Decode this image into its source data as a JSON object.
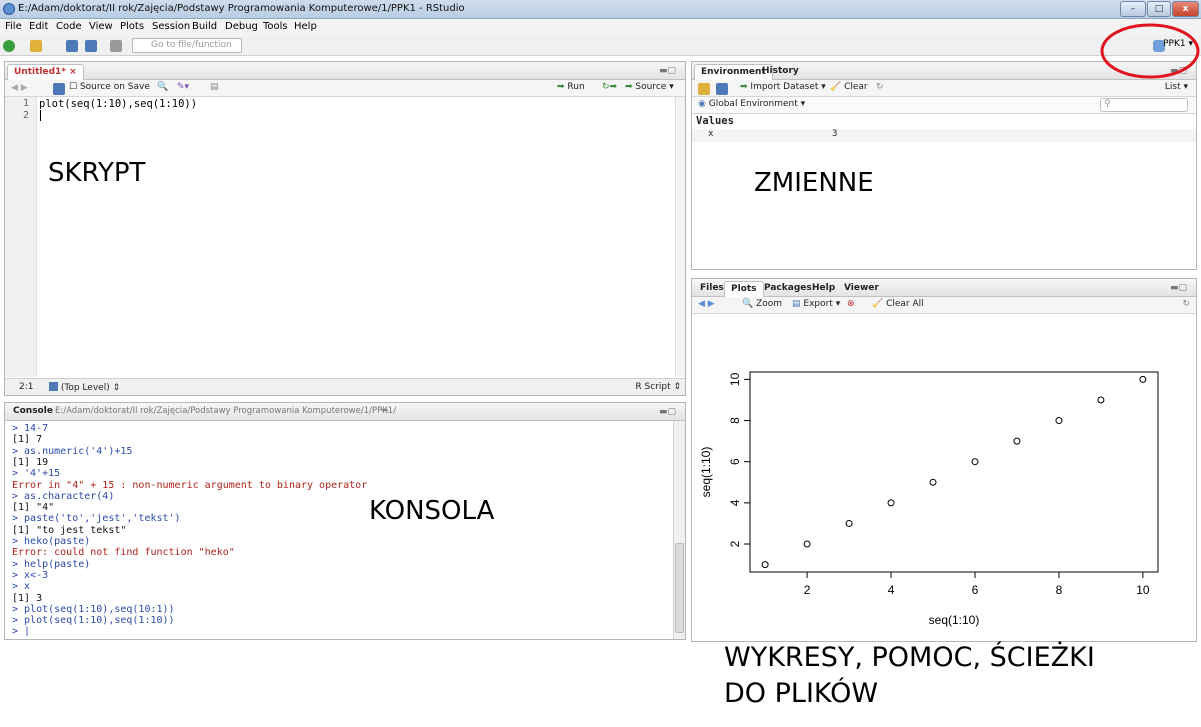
{
  "window": {
    "title": "E:/Adam/doktorat/II rok/Zajęcia/Podstawy Programowania Komputerowe/1/PPK1 - RStudio",
    "minimize": "–",
    "maximize": "□",
    "close": "x"
  },
  "menu": [
    "File",
    "Edit",
    "Code",
    "View",
    "Plots",
    "Session",
    "Build",
    "Debug",
    "Tools",
    "Help"
  ],
  "toolbar": {
    "goto_placeholder": "Go to file/function",
    "project": "PPK1"
  },
  "editor": {
    "tab": "Untitled1*",
    "source_on_save": "Source on Save",
    "run": "Run",
    "source": "Source",
    "lines": [
      "plot(seq(1:10),seq(1:10))",
      ""
    ],
    "line_numbers": [
      "1",
      "2"
    ],
    "status_pos": "2:1",
    "status_scope": "(Top Level)",
    "status_type": "R Script"
  },
  "console": {
    "tab": "Console",
    "path": "E:/Adam/doktorat/II rok/Zajęcia/Podstawy Programowania Komputerowe/1/PPK1/",
    "lines": [
      {
        "t": "cmd",
        "s": "> 14-7"
      },
      {
        "t": "out",
        "s": "[1] 7"
      },
      {
        "t": "cmd",
        "s": "> as.numeric('4')+15"
      },
      {
        "t": "out",
        "s": "[1] 19"
      },
      {
        "t": "cmd",
        "s": "> '4'+15"
      },
      {
        "t": "err",
        "s": "Error in \"4\" + 15 : non-numeric argument to binary operator"
      },
      {
        "t": "cmd",
        "s": "> as.character(4)"
      },
      {
        "t": "out",
        "s": "[1] \"4\""
      },
      {
        "t": "cmd",
        "s": "> paste('to','jest','tekst')"
      },
      {
        "t": "out",
        "s": "[1] \"to jest tekst\""
      },
      {
        "t": "cmd",
        "s": "> heko(paste)"
      },
      {
        "t": "err",
        "s": "Error: could not find function \"heko\""
      },
      {
        "t": "cmd",
        "s": "> help(paste)"
      },
      {
        "t": "cmd",
        "s": "> x<-3"
      },
      {
        "t": "cmd",
        "s": "> x"
      },
      {
        "t": "out",
        "s": "[1] 3"
      },
      {
        "t": "cmd",
        "s": "> plot(seq(1:10),seq(10:1))"
      },
      {
        "t": "cmd",
        "s": "> plot(seq(1:10),seq(1:10))"
      },
      {
        "t": "cmd",
        "s": "> |"
      }
    ]
  },
  "environment": {
    "tab_env": "Environment",
    "tab_history": "History",
    "import": "Import Dataset",
    "clear": "Clear",
    "list": "List",
    "scope": "Global Environment",
    "section": "Values",
    "var_name": "x",
    "var_value": "3"
  },
  "files": {
    "tabs": [
      "Files",
      "Plots",
      "Packages",
      "Help",
      "Viewer"
    ],
    "zoom": "Zoom",
    "export": "Export",
    "clear_all": "Clear All"
  },
  "overlays": {
    "skrypt": "SKRYPT",
    "zmienne": "ZMIENNE",
    "konsola": "KONSOLA",
    "wykresy_line1": "WYKRESY, POMOC, ŚCIEŻKI",
    "wykresy_line2": "DO PLIKÓW"
  },
  "highlight_color": "#e0141e",
  "chart_data": {
    "type": "scatter",
    "x": [
      1,
      2,
      3,
      4,
      5,
      6,
      7,
      8,
      9,
      10
    ],
    "y": [
      1,
      2,
      3,
      4,
      5,
      6,
      7,
      8,
      9,
      10
    ],
    "xlabel": "seq(1:10)",
    "ylabel": "seq(1:10)",
    "xticks": [
      "2",
      "4",
      "6",
      "8",
      "10"
    ],
    "yticks": [
      "2",
      "4",
      "6",
      "8",
      "10"
    ],
    "xlim": [
      0.64,
      10.36
    ],
    "ylim": [
      0.64,
      10.36
    ]
  }
}
